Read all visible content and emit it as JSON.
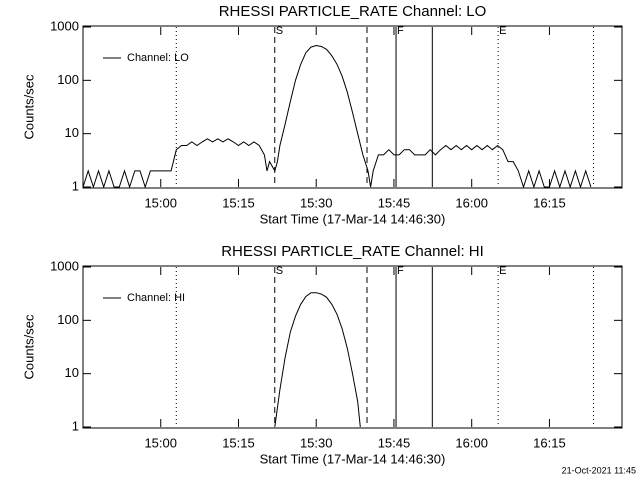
{
  "chart_data": [
    {
      "type": "line",
      "title": "RHESSI PARTICLE_RATE Channel: LO",
      "xlabel": "Start Time (17-Mar-14 14:46:30)",
      "ylabel": "Counts/sec",
      "log_y": true,
      "ylim": [
        1,
        1000
      ],
      "yticks": [
        1000,
        100,
        10,
        1
      ],
      "xlim": [
        885,
        989
      ],
      "xticks": [
        {
          "value": 900,
          "label": "15:00"
        },
        {
          "value": 915,
          "label": "15:15"
        },
        {
          "value": 930,
          "label": "15:30"
        },
        {
          "value": 945,
          "label": "15:45"
        },
        {
          "value": 960,
          "label": "16:00"
        },
        {
          "value": 975,
          "label": "16:15"
        }
      ],
      "legend": "upper left",
      "markers": [
        {
          "x": 903,
          "style": "dotted"
        },
        {
          "x": 922,
          "style": "dashed"
        },
        {
          "x": 939.8,
          "style": "dashed"
        },
        {
          "x": 945.4,
          "style": "solid"
        },
        {
          "x": 952.4,
          "style": "solid"
        },
        {
          "x": 965.1,
          "style": "dotted"
        },
        {
          "x": 983.5,
          "style": "dotted"
        }
      ],
      "marker_labels": [
        {
          "x": 922,
          "text": "S"
        },
        {
          "x": 945.4,
          "text": "F"
        },
        {
          "x": 965.1,
          "text": "E"
        }
      ],
      "series": [
        {
          "name": "Channel: LO",
          "color": "#000000",
          "x": [
            885,
            886,
            887,
            888,
            889,
            890,
            891,
            892,
            893,
            894,
            895,
            896,
            897,
            898,
            899,
            900,
            901,
            902,
            903,
            904,
            905,
            906,
            907,
            908,
            909,
            910,
            911,
            912,
            913,
            914,
            915,
            916,
            917,
            918,
            919,
            920,
            920.5,
            921,
            922,
            922.5,
            923,
            924,
            925,
            926,
            927,
            928,
            929,
            930,
            931,
            932,
            933,
            934,
            935,
            936,
            937,
            938,
            939,
            940,
            940.5,
            941,
            942,
            943,
            944,
            945,
            946,
            947,
            948,
            949,
            950,
            951,
            952,
            953,
            954,
            955,
            956,
            957,
            958,
            959,
            960,
            961,
            962,
            963,
            964,
            965,
            966,
            967,
            968,
            969,
            970,
            971,
            972,
            973,
            974,
            975,
            976,
            977,
            978,
            979,
            980,
            981,
            982,
            983
          ],
          "values": [
            1,
            2,
            1,
            2,
            1,
            2,
            1,
            1,
            2,
            1,
            2,
            2,
            1,
            2,
            2,
            2,
            2,
            2,
            5,
            6,
            6,
            7,
            6,
            7,
            8,
            7,
            8,
            7,
            8,
            7,
            6,
            7,
            6,
            7,
            6,
            4,
            2,
            3,
            2,
            3,
            6,
            15,
            40,
            100,
            200,
            330,
            420,
            450,
            430,
            380,
            290,
            200,
            120,
            60,
            25,
            10,
            4,
            2,
            1,
            2,
            4,
            4,
            5,
            4,
            4,
            5,
            5,
            4,
            4,
            4,
            5,
            4,
            5,
            6,
            5,
            6,
            5,
            6,
            5,
            6,
            5,
            6,
            5,
            6,
            5,
            3,
            3,
            2,
            1,
            2,
            1,
            2,
            1,
            1,
            2,
            1,
            2,
            1,
            2,
            1,
            2,
            1
          ]
        }
      ]
    },
    {
      "type": "line",
      "title": "RHESSI PARTICLE_RATE Channel: HI",
      "xlabel": "Start Time (17-Mar-14 14:46:30)",
      "ylabel": "Counts/sec",
      "log_y": true,
      "ylim": [
        1,
        1000
      ],
      "yticks": [
        1000,
        100,
        10,
        1
      ],
      "xlim": [
        885,
        989
      ],
      "xticks": [
        {
          "value": 900,
          "label": "15:00"
        },
        {
          "value": 915,
          "label": "15:15"
        },
        {
          "value": 930,
          "label": "15:30"
        },
        {
          "value": 945,
          "label": "15:45"
        },
        {
          "value": 960,
          "label": "16:00"
        },
        {
          "value": 975,
          "label": "16:15"
        }
      ],
      "legend": "upper left",
      "markers": [
        {
          "x": 903,
          "style": "dotted"
        },
        {
          "x": 922,
          "style": "dashed"
        },
        {
          "x": 939.8,
          "style": "dashed"
        },
        {
          "x": 945.4,
          "style": "solid"
        },
        {
          "x": 952.4,
          "style": "solid"
        },
        {
          "x": 965.1,
          "style": "dotted"
        },
        {
          "x": 983.5,
          "style": "dotted"
        }
      ],
      "marker_labels": [
        {
          "x": 922,
          "text": "S"
        },
        {
          "x": 945.4,
          "text": "F"
        },
        {
          "x": 965.1,
          "text": "E"
        }
      ],
      "series": [
        {
          "name": "Channel: HI",
          "color": "#000000",
          "x": [
            922,
            923,
            924,
            925,
            926,
            927,
            928,
            929,
            930,
            931,
            932,
            933,
            934,
            935,
            936,
            937,
            938,
            938.5
          ],
          "values": [
            1,
            5,
            20,
            60,
            120,
            200,
            280,
            330,
            330,
            310,
            270,
            200,
            130,
            70,
            30,
            10,
            3,
            1
          ]
        }
      ]
    }
  ],
  "footer": "21-Oct-2021 11:45"
}
